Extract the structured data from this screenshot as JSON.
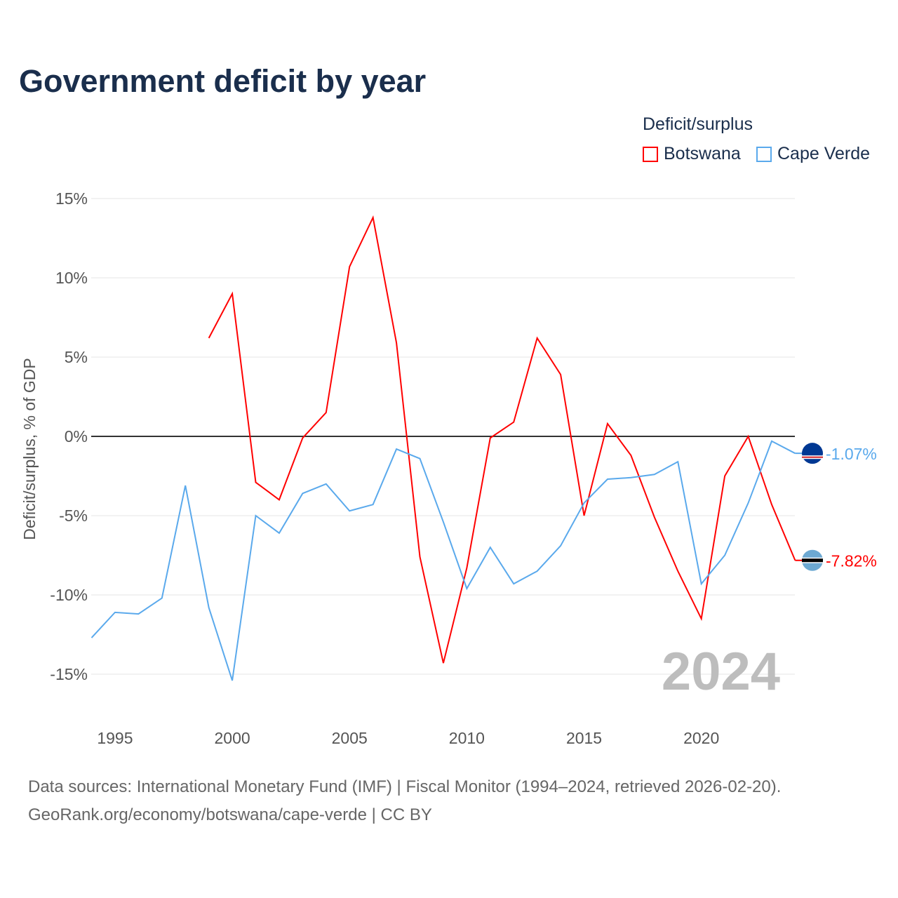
{
  "title": "Government deficit by year",
  "legend": {
    "title": "Deficit/surplus",
    "items": [
      {
        "name": "Botswana",
        "color": "#ff0000"
      },
      {
        "name": "Cape Verde",
        "color": "#5aa9ec"
      }
    ]
  },
  "source_line1": "Data sources: International Monetary Fund (IMF) | Fiscal Monitor (1994–2024, retrieved 2026-02-20).",
  "source_line2": "GeoRank.org/economy/botswana/cape-verde | CC BY",
  "chart_data": {
    "type": "line",
    "title": "Government deficit by year",
    "ylabel": "Deficit/surplus, % of GDP",
    "xlabel": "",
    "xlim": [
      1994,
      2024
    ],
    "ylim": [
      -18,
      17
    ],
    "yticks": [
      15,
      10,
      5,
      0,
      -5,
      -10,
      -15
    ],
    "ytick_labels": [
      "15%",
      "10%",
      "5%",
      "0%",
      "-5%",
      "-10%",
      "-15%"
    ],
    "xticks": [
      1995,
      2000,
      2005,
      2010,
      2015,
      2020
    ],
    "watermark_year": "2024",
    "series": [
      {
        "name": "Botswana",
        "color": "#ff0000",
        "end_label": "-7.82%",
        "x": [
          1999,
          2000,
          2001,
          2002,
          2003,
          2004,
          2005,
          2006,
          2007,
          2008,
          2009,
          2010,
          2011,
          2012,
          2013,
          2014,
          2015,
          2016,
          2017,
          2018,
          2019,
          2020,
          2021,
          2022,
          2023,
          2024
        ],
        "values": [
          6.2,
          9.0,
          -2.9,
          -4.0,
          -0.1,
          1.5,
          10.7,
          13.8,
          5.9,
          -7.6,
          -14.3,
          -8.3,
          -0.1,
          0.9,
          6.2,
          3.9,
          -5.0,
          0.8,
          -1.2,
          -5.1,
          -8.5,
          -11.5,
          -2.5,
          0.0,
          -4.3,
          -7.82
        ]
      },
      {
        "name": "Cape Verde",
        "color": "#5aa9ec",
        "end_label": "-1.07%",
        "x": [
          1994,
          1995,
          1996,
          1997,
          1998,
          1999,
          2000,
          2001,
          2002,
          2003,
          2004,
          2005,
          2006,
          2007,
          2008,
          2009,
          2010,
          2011,
          2012,
          2013,
          2014,
          2015,
          2016,
          2017,
          2018,
          2019,
          2020,
          2021,
          2022,
          2023,
          2024
        ],
        "values": [
          -12.7,
          -11.1,
          -11.2,
          -10.2,
          -3.1,
          -10.8,
          -15.4,
          -5.0,
          -6.1,
          -3.6,
          -3.0,
          -4.7,
          -4.3,
          -0.8,
          -1.4,
          -5.4,
          -9.6,
          -7.0,
          -9.3,
          -8.5,
          -6.9,
          -4.2,
          -2.7,
          -2.6,
          -2.4,
          -1.6,
          -9.3,
          -7.5,
          -4.2,
          -0.3,
          -1.07
        ]
      }
    ]
  }
}
